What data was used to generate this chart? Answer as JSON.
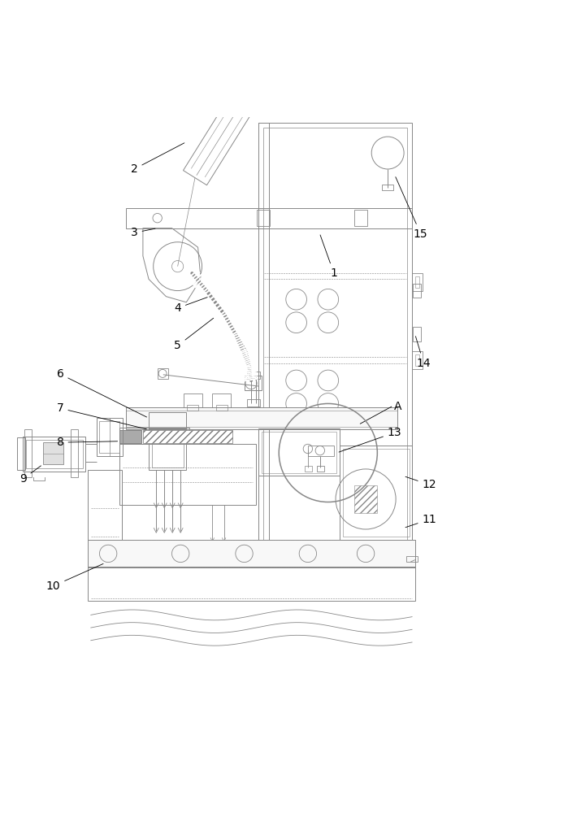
{
  "bg_color": "#ffffff",
  "lc": "#888888",
  "lc2": "#555555",
  "fig_width": 7.15,
  "fig_height": 10.0,
  "dpi": 100,
  "labels": {
    "1": [
      0.575,
      0.72,
      0.52,
      0.82
    ],
    "2": [
      0.255,
      0.88,
      0.28,
      0.93
    ],
    "3": [
      0.24,
      0.79,
      0.3,
      0.795
    ],
    "4": [
      0.32,
      0.67,
      0.37,
      0.72
    ],
    "5": [
      0.33,
      0.6,
      0.39,
      0.635
    ],
    "6": [
      0.1,
      0.555,
      0.25,
      0.5
    ],
    "7": [
      0.1,
      0.495,
      0.28,
      0.465
    ],
    "8": [
      0.1,
      0.435,
      0.22,
      0.435
    ],
    "9": [
      0.04,
      0.375,
      0.1,
      0.38
    ],
    "10": [
      0.09,
      0.185,
      0.18,
      0.205
    ],
    "11": [
      0.73,
      0.31,
      0.68,
      0.305
    ],
    "12": [
      0.73,
      0.365,
      0.68,
      0.365
    ],
    "13": [
      0.67,
      0.46,
      0.6,
      0.455
    ],
    "14": [
      0.71,
      0.58,
      0.68,
      0.565
    ],
    "15": [
      0.71,
      0.8,
      0.665,
      0.82
    ],
    "A": [
      0.675,
      0.49,
      0.62,
      0.47
    ]
  }
}
